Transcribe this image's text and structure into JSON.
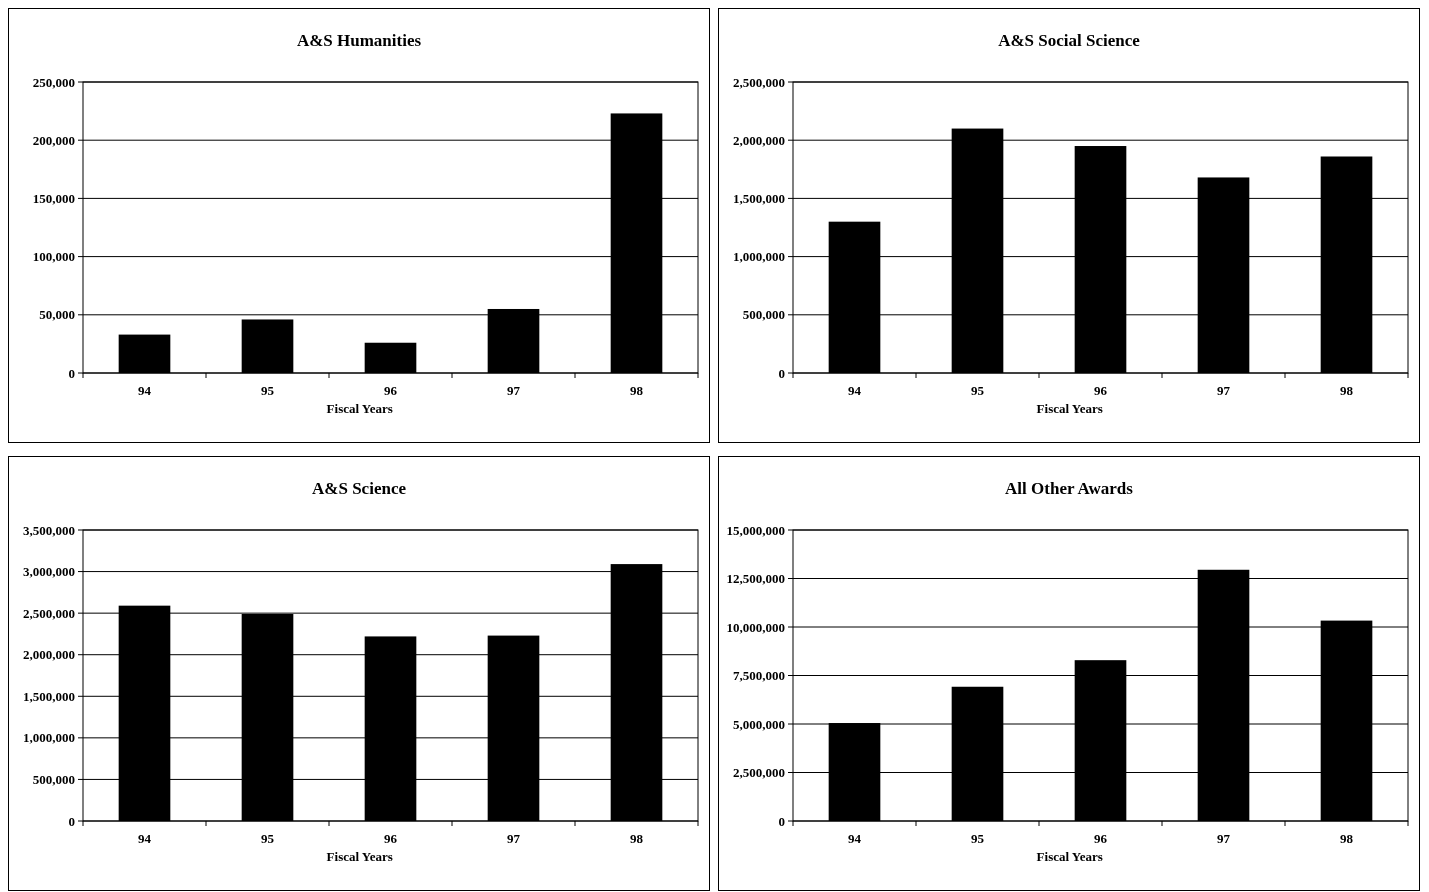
{
  "chart_data": [
    {
      "type": "bar",
      "title": "A&S Humanities",
      "xlabel": "Fiscal Years",
      "categories": [
        "94",
        "95",
        "96",
        "97",
        "98"
      ],
      "color": "#000000",
      "values": [
        33000,
        46000,
        26000,
        55000,
        223000
      ],
      "ylim": [
        0,
        250000
      ],
      "yticks": [
        {
          "value": 0,
          "label": "0"
        },
        {
          "value": 50000,
          "label": "50,000"
        },
        {
          "value": 100000,
          "label": "100,000"
        },
        {
          "value": 150000,
          "label": "150,000"
        },
        {
          "value": 200000,
          "label": "200,000"
        },
        {
          "value": 250000,
          "label": "250,000"
        }
      ],
      "grid": "y"
    },
    {
      "type": "bar",
      "title": "A&S Social Science",
      "xlabel": "Fiscal Years",
      "categories": [
        "94",
        "95",
        "96",
        "97",
        "98"
      ],
      "color": "#000000",
      "values": [
        1300000,
        2100000,
        1950000,
        1680000,
        1860000
      ],
      "ylim": [
        0,
        2500000
      ],
      "yticks": [
        {
          "value": 0,
          "label": "0"
        },
        {
          "value": 500000,
          "label": "500,000"
        },
        {
          "value": 1000000,
          "label": "1,000,000"
        },
        {
          "value": 1500000,
          "label": "1,500,000"
        },
        {
          "value": 2000000,
          "label": "2,000,000"
        },
        {
          "value": 2500000,
          "label": "2,500,000"
        }
      ],
      "grid": "y"
    },
    {
      "type": "bar",
      "title": "A&S Science",
      "xlabel": "Fiscal Years",
      "categories": [
        "94",
        "95",
        "96",
        "97",
        "98"
      ],
      "color": "#000000",
      "values": [
        2590000,
        2490000,
        2220000,
        2230000,
        3090000
      ],
      "ylim": [
        0,
        3500000
      ],
      "yticks": [
        {
          "value": 0,
          "label": "0"
        },
        {
          "value": 500000,
          "label": "500,000"
        },
        {
          "value": 1000000,
          "label": "1,000,000"
        },
        {
          "value": 1500000,
          "label": "1,500,000"
        },
        {
          "value": 2000000,
          "label": "2,000,000"
        },
        {
          "value": 2500000,
          "label": "2,500,000"
        },
        {
          "value": 3000000,
          "label": "3,000,000"
        },
        {
          "value": 3500000,
          "label": "3,500,000"
        }
      ],
      "grid": "y"
    },
    {
      "type": "bar",
      "title": "All Other Awards",
      "xlabel": "Fiscal Years",
      "categories": [
        "94",
        "95",
        "96",
        "97",
        "98"
      ],
      "color": "#000000",
      "values": [
        5050000,
        6920000,
        8290000,
        12950000,
        10330000
      ],
      "ylim": [
        0,
        15000000
      ],
      "yticks": [
        {
          "value": 0,
          "label": "0"
        },
        {
          "value": 2500000,
          "label": "2,500,000"
        },
        {
          "value": 5000000,
          "label": "5,000,000"
        },
        {
          "value": 7500000,
          "label": "7,500,000"
        },
        {
          "value": 10000000,
          "label": "10,000,000"
        },
        {
          "value": 12500000,
          "label": "12,500,000"
        },
        {
          "value": 15000000,
          "label": "15,000,000"
        }
      ],
      "grid": "y"
    }
  ]
}
